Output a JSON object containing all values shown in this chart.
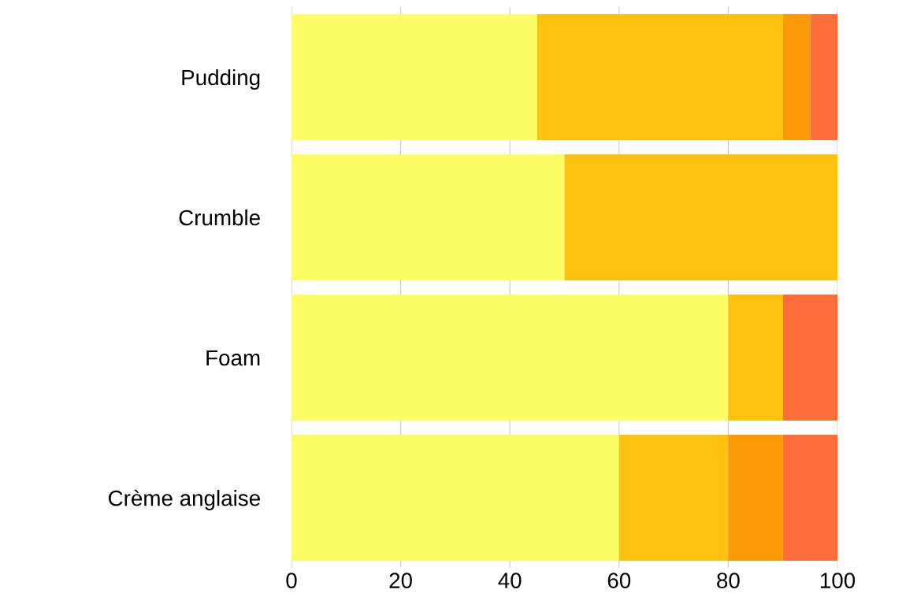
{
  "chart_data": {
    "type": "bar",
    "orientation": "horizontal",
    "stacked": true,
    "categories": [
      "Pudding",
      "Crumble",
      "Foam",
      "Crème anglaise"
    ],
    "series": [
      {
        "color": "#fdfd66",
        "values": [
          45,
          50,
          80,
          60
        ]
      },
      {
        "color": "#fdc20f",
        "values": [
          45,
          50,
          10,
          20
        ]
      },
      {
        "color": "#fd9a08",
        "values": [
          5,
          0,
          0,
          10
        ]
      },
      {
        "color": "#fd6e3a",
        "values": [
          5,
          0,
          10,
          10
        ]
      }
    ],
    "xlim": [
      0,
      100
    ],
    "xticks": [
      0,
      20,
      40,
      60,
      80,
      100
    ],
    "grid": "x",
    "legend": false
  }
}
